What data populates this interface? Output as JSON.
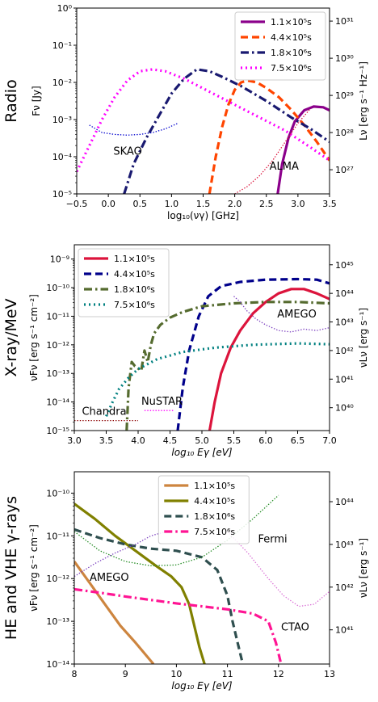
{
  "chart_data": [
    {
      "type": "line",
      "panel_label": "Radio",
      "xlabel": "log₁₀(νγ) [GHz]",
      "ylabel": "Fν [Jy]",
      "ylabel_right": "Lν [erg s⁻¹ Hz⁻¹]",
      "xlim": [
        -0.5,
        3.5
      ],
      "ylim_log10": [
        -5,
        0
      ],
      "right_ylim_log10": [
        26.35,
        31.35
      ],
      "xticks": [
        "−0.5",
        "0.0",
        "0.5",
        "1.0",
        "1.5",
        "2.0",
        "2.5",
        "3.0",
        "3.5"
      ],
      "yticks": [
        "10⁻⁵",
        "10⁻⁴",
        "10⁻³",
        "10⁻²",
        "10⁻¹",
        "10⁰"
      ],
      "right_yticks": [
        "10²⁷",
        "10²⁸",
        "10²⁹",
        "10³⁰",
        "10³¹"
      ],
      "legend_position": "top-right",
      "series": [
        {
          "name": "1.1×10⁵s",
          "color": "#8b008b",
          "dash": "solid",
          "x": [
            2.68,
            2.75,
            2.85,
            2.95,
            3.1,
            3.25,
            3.4,
            3.5
          ],
          "y": [
            -5,
            -4.2,
            -3.5,
            -3.05,
            -2.75,
            -2.65,
            -2.67,
            -2.75
          ]
        },
        {
          "name": "4.4×10⁵s",
          "color": "#ff4500",
          "dash": "dashed",
          "x": [
            1.6,
            1.7,
            1.8,
            1.9,
            2.0,
            2.1,
            2.2,
            2.35,
            2.5,
            2.7,
            2.9,
            3.1,
            3.3,
            3.5
          ],
          "y": [
            -5,
            -4.0,
            -3.2,
            -2.6,
            -2.2,
            -2.0,
            -1.95,
            -2.0,
            -2.15,
            -2.4,
            -2.75,
            -3.15,
            -3.6,
            -4.1
          ]
        },
        {
          "name": "1.8×10⁶s",
          "color": "#191970",
          "dash": "dashdot",
          "x": [
            0.25,
            0.4,
            0.6,
            0.8,
            1.0,
            1.2,
            1.4,
            1.6,
            1.8,
            2.1,
            2.5,
            2.9,
            3.2,
            3.5
          ],
          "y": [
            -5,
            -4.2,
            -3.5,
            -2.9,
            -2.3,
            -1.9,
            -1.65,
            -1.7,
            -1.85,
            -2.1,
            -2.5,
            -2.95,
            -3.25,
            -3.6
          ]
        },
        {
          "name": "7.5×10⁶s",
          "color": "#ff00ff",
          "dash": "dotted",
          "x": [
            -0.5,
            -0.3,
            -0.1,
            0.1,
            0.3,
            0.5,
            0.7,
            0.9,
            1.2,
            1.6,
            2.0,
            2.4,
            2.8,
            3.2,
            3.5
          ],
          "y": [
            -4.4,
            -3.7,
            -3.0,
            -2.4,
            -1.95,
            -1.7,
            -1.65,
            -1.7,
            -1.9,
            -2.25,
            -2.6,
            -2.95,
            -3.3,
            -3.75,
            -4.1
          ]
        },
        {
          "name": "SKAO",
          "color": "#0000cd",
          "dash": "thin-dotted",
          "x": [
            -0.3,
            -0.1,
            0.1,
            0.3,
            0.5,
            0.7,
            0.9,
            1.1
          ],
          "y": [
            -3.15,
            -3.35,
            -3.4,
            -3.42,
            -3.4,
            -3.35,
            -3.25,
            -3.1
          ]
        },
        {
          "name": "ALMA",
          "color": "#dc143c",
          "dash": "thin-dotted",
          "x": [
            2.0,
            2.2,
            2.4,
            2.6,
            2.8,
            3.0,
            3.2
          ],
          "y": [
            -5,
            -4.8,
            -4.5,
            -4.1,
            -3.6,
            -3.1,
            -2.7
          ]
        }
      ],
      "annotations": [
        {
          "text": "SKAO",
          "color": "#0000cd",
          "x": 0.08,
          "y": -3.95
        },
        {
          "text": "ALMA",
          "color": "#dc143c",
          "x": 2.55,
          "y": -4.35
        }
      ]
    },
    {
      "type": "line",
      "panel_label": "X-ray/MeV",
      "xlabel": "log₁₀ Eγ [eV]",
      "ylabel": "νFν [erg s⁻¹ cm⁻²]",
      "ylabel_right": "νLν [erg s⁻¹]",
      "xlim": [
        3.0,
        7.0
      ],
      "ylim_log10": [
        -15,
        -8.5
      ],
      "right_ylim_log10": [
        39.2,
        45.7
      ],
      "xticks": [
        "3.0",
        "3.5",
        "4.0",
        "4.5",
        "5.0",
        "5.5",
        "6.0",
        "6.5",
        "7.0"
      ],
      "yticks": [
        "10⁻¹⁵",
        "10⁻¹⁴",
        "10⁻¹³",
        "10⁻¹²",
        "10⁻¹¹",
        "10⁻¹⁰",
        "10⁻⁹"
      ],
      "right_yticks": [
        "10⁴⁰",
        "10⁴¹",
        "10⁴²",
        "10⁴³",
        "10⁴⁴",
        "10⁴⁵"
      ],
      "legend_position": "top-left",
      "series": [
        {
          "name": "1.1×10⁵s",
          "color": "#dc143c",
          "dash": "solid",
          "x": [
            5.12,
            5.2,
            5.3,
            5.45,
            5.6,
            5.8,
            6.0,
            6.2,
            6.4,
            6.6,
            6.8,
            7.0
          ],
          "y": [
            -15,
            -14,
            -13.0,
            -12.1,
            -11.5,
            -10.9,
            -10.5,
            -10.2,
            -10.05,
            -10.05,
            -10.2,
            -10.4
          ]
        },
        {
          "name": "4.4×10⁵s",
          "color": "#00008b",
          "dash": "dashed",
          "x": [
            4.62,
            4.7,
            4.8,
            4.95,
            5.1,
            5.3,
            5.6,
            6.0,
            6.5,
            6.8,
            7.0
          ],
          "y": [
            -15,
            -13.5,
            -12.2,
            -11.0,
            -10.3,
            -9.95,
            -9.8,
            -9.72,
            -9.7,
            -9.72,
            -9.85
          ]
        },
        {
          "name": "1.8×10⁶s",
          "color": "#556b2f",
          "dash": "dashdot",
          "x": [
            3.82,
            3.85,
            3.9,
            3.95,
            4.05,
            4.1,
            4.15,
            4.2,
            4.25,
            4.35,
            4.5,
            4.7,
            5.0,
            5.5,
            6.0,
            6.5,
            7.0
          ],
          "y": [
            -15,
            -13.5,
            -12.6,
            -12.75,
            -12.9,
            -12.2,
            -12.6,
            -12.0,
            -11.6,
            -11.3,
            -11.05,
            -10.85,
            -10.65,
            -10.55,
            -10.5,
            -10.5,
            -10.55
          ]
        },
        {
          "name": "7.5×10⁶s",
          "color": "#008080",
          "dash": "dotted",
          "x": [
            3.5,
            3.6,
            3.7,
            3.85,
            4.0,
            4.3,
            4.7,
            5.2,
            5.8,
            6.5,
            7.0
          ],
          "y": [
            -14.5,
            -14.0,
            -13.55,
            -13.15,
            -12.85,
            -12.5,
            -12.25,
            -12.1,
            -12.0,
            -11.95,
            -11.98
          ]
        },
        {
          "name": "Chandra",
          "color": "#8b0000",
          "dash": "thin-dotted",
          "x": [
            3.0,
            3.2,
            3.4,
            3.6,
            3.8,
            4.0
          ],
          "y": [
            -14.65,
            -14.65,
            -14.65,
            -14.65,
            -14.65,
            -14.65
          ]
        },
        {
          "name": "NuSTAR",
          "color": "#ff00ff",
          "dash": "thin-dotted",
          "x": [
            4.1,
            4.25,
            4.4,
            4.55
          ],
          "y": [
            -14.3,
            -14.3,
            -14.3,
            -14.3
          ]
        },
        {
          "name": "AMEGO",
          "color": "#7b3fbf",
          "dash": "thin-dotted",
          "x": [
            5.5,
            5.6,
            5.7,
            5.85,
            6.0,
            6.2,
            6.4,
            6.6,
            6.8,
            7.0
          ],
          "y": [
            -10.3,
            -10.5,
            -10.8,
            -11.1,
            -11.3,
            -11.5,
            -11.55,
            -11.45,
            -11.5,
            -11.4
          ]
        }
      ],
      "annotations": [
        {
          "text": "Chandra",
          "color": "#8b0000",
          "x": 3.12,
          "y": -14.45
        },
        {
          "text": "NuSTAR",
          "color": "#ff00ff",
          "x": 4.05,
          "y": -14.1
        },
        {
          "text": "AMEGO",
          "color": "#7b3fbf",
          "x": 6.18,
          "y": -11.05
        }
      ]
    },
    {
      "type": "line",
      "panel_label": "HE and VHE γ-rays",
      "xlabel": "log₁₀ Eγ [eV]",
      "ylabel": "νFν [erg s⁻¹ cm⁻²]",
      "ylabel_right": "νLν [erg s⁻¹]",
      "xlim": [
        8,
        13
      ],
      "ylim_log10": [
        -14,
        -9.5
      ],
      "right_ylim_log10": [
        40.2,
        44.7
      ],
      "xticks": [
        "8",
        "9",
        "10",
        "11",
        "12",
        "13"
      ],
      "yticks": [
        "10⁻¹⁴",
        "10⁻¹³",
        "10⁻¹²",
        "10⁻¹¹",
        "10⁻¹⁰"
      ],
      "right_yticks": [
        "10⁴¹",
        "10⁴²",
        "10⁴³",
        "10⁴⁴"
      ],
      "legend_position": "top-center",
      "series": [
        {
          "name": "1.1×10⁵s",
          "color": "#cd853f",
          "dash": "solid",
          "x": [
            8.0,
            8.3,
            8.6,
            8.9,
            9.2,
            9.55
          ],
          "y": [
            -11.6,
            -12.1,
            -12.6,
            -13.1,
            -13.5,
            -14
          ]
        },
        {
          "name": "4.4×10⁵s",
          "color": "#808000",
          "dash": "solid",
          "x": [
            8.0,
            8.4,
            8.8,
            9.2,
            9.6,
            9.9,
            10.1,
            10.25,
            10.35,
            10.45,
            10.55
          ],
          "y": [
            -10.25,
            -10.6,
            -11.0,
            -11.35,
            -11.7,
            -11.95,
            -12.2,
            -12.6,
            -13.1,
            -13.6,
            -14
          ]
        },
        {
          "name": "1.8×10⁶s",
          "color": "#2f4f4f",
          "dash": "dashed",
          "x": [
            8.0,
            8.5,
            9.0,
            9.5,
            10.0,
            10.5,
            10.8,
            11.0,
            11.1,
            11.2,
            11.3
          ],
          "y": [
            -10.85,
            -11.05,
            -11.2,
            -11.3,
            -11.35,
            -11.5,
            -11.8,
            -12.4,
            -13.0,
            -13.5,
            -14
          ]
        },
        {
          "name": "7.5×10⁶s",
          "color": "#ff1493",
          "dash": "dashdot",
          "x": [
            8.0,
            8.5,
            9.0,
            9.5,
            10.0,
            10.5,
            11.0,
            11.5,
            11.8,
            11.95,
            12.05
          ],
          "y": [
            -12.25,
            -12.33,
            -12.42,
            -12.5,
            -12.58,
            -12.65,
            -12.72,
            -12.82,
            -13.0,
            -13.5,
            -14
          ]
        },
        {
          "name": "Fermi",
          "color": "#228b22",
          "dash": "thin-dotted",
          "x": [
            8.0,
            8.5,
            9.0,
            9.5,
            10.0,
            10.5,
            11.0,
            11.5,
            12.0
          ],
          "y": [
            -10.9,
            -11.35,
            -11.6,
            -11.7,
            -11.68,
            -11.5,
            -11.1,
            -10.6,
            -10.05
          ]
        },
        {
          "name": "AMEGO",
          "color": "#7b3fbf",
          "dash": "thin-dotted",
          "x": [
            8.0,
            8.4,
            8.8,
            9.2,
            9.5,
            9.8
          ],
          "y": [
            -11.95,
            -11.65,
            -11.4,
            -11.2,
            -11.0,
            -10.9
          ]
        },
        {
          "name": "CTAO",
          "color": "#da70d6",
          "dash": "thin-dotted",
          "x": [
            11.0,
            11.4,
            11.8,
            12.1,
            12.4,
            12.7,
            13.0
          ],
          "y": [
            -10.9,
            -11.4,
            -12.0,
            -12.4,
            -12.65,
            -12.6,
            -12.3
          ]
        }
      ],
      "annotations": [
        {
          "text": "Fermi",
          "color": "#228b22",
          "x": 11.6,
          "y": -11.15
        },
        {
          "text": "AMEGO",
          "color": "#7b3fbf",
          "x": 8.3,
          "y": -12.05
        },
        {
          "text": "CTAO",
          "color": "#da70d6",
          "x": 12.05,
          "y": -13.22
        }
      ]
    }
  ]
}
